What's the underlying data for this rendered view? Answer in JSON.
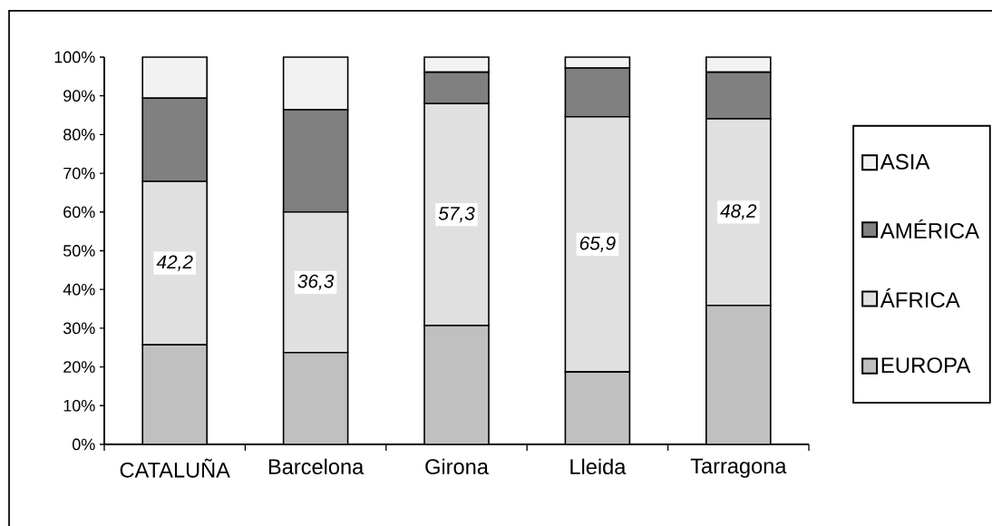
{
  "chart_data": {
    "type": "bar",
    "stacked": true,
    "categories": [
      "CATALUÑA",
      "Barcelona",
      "Girona",
      "Lleida",
      "Tarragona"
    ],
    "series": [
      {
        "name": "EUROPA",
        "color": "#c0c0c0",
        "values": [
          25.7,
          23.7,
          30.7,
          18.7,
          35.9
        ]
      },
      {
        "name": "ÁFRICA",
        "color": "#e0e0e0",
        "values": [
          42.2,
          36.3,
          57.3,
          65.9,
          48.2
        ],
        "value_labels": [
          "42,2",
          "36,3",
          "57,3",
          "65,9",
          "48,2"
        ]
      },
      {
        "name": "AMÉRICA",
        "color": "#808080",
        "values": [
          21.5,
          26.4,
          8.1,
          12.6,
          12.0
        ]
      },
      {
        "name": "ASIA",
        "color": "#f2f2f2",
        "values": [
          10.6,
          13.6,
          3.9,
          2.8,
          3.9
        ]
      }
    ],
    "ylim": [
      0,
      100
    ],
    "yticks": [
      {
        "value": 0,
        "label": "0%"
      },
      {
        "value": 10,
        "label": "10%"
      },
      {
        "value": 20,
        "label": "20%"
      },
      {
        "value": 30,
        "label": "30%"
      },
      {
        "value": 40,
        "label": "40%"
      },
      {
        "value": 50,
        "label": "50%"
      },
      {
        "value": 60,
        "label": "60%"
      },
      {
        "value": 70,
        "label": "70%"
      },
      {
        "value": 80,
        "label": "80%"
      },
      {
        "value": 90,
        "label": "90%"
      },
      {
        "value": 100,
        "label": "100%"
      }
    ],
    "legend": "right"
  }
}
